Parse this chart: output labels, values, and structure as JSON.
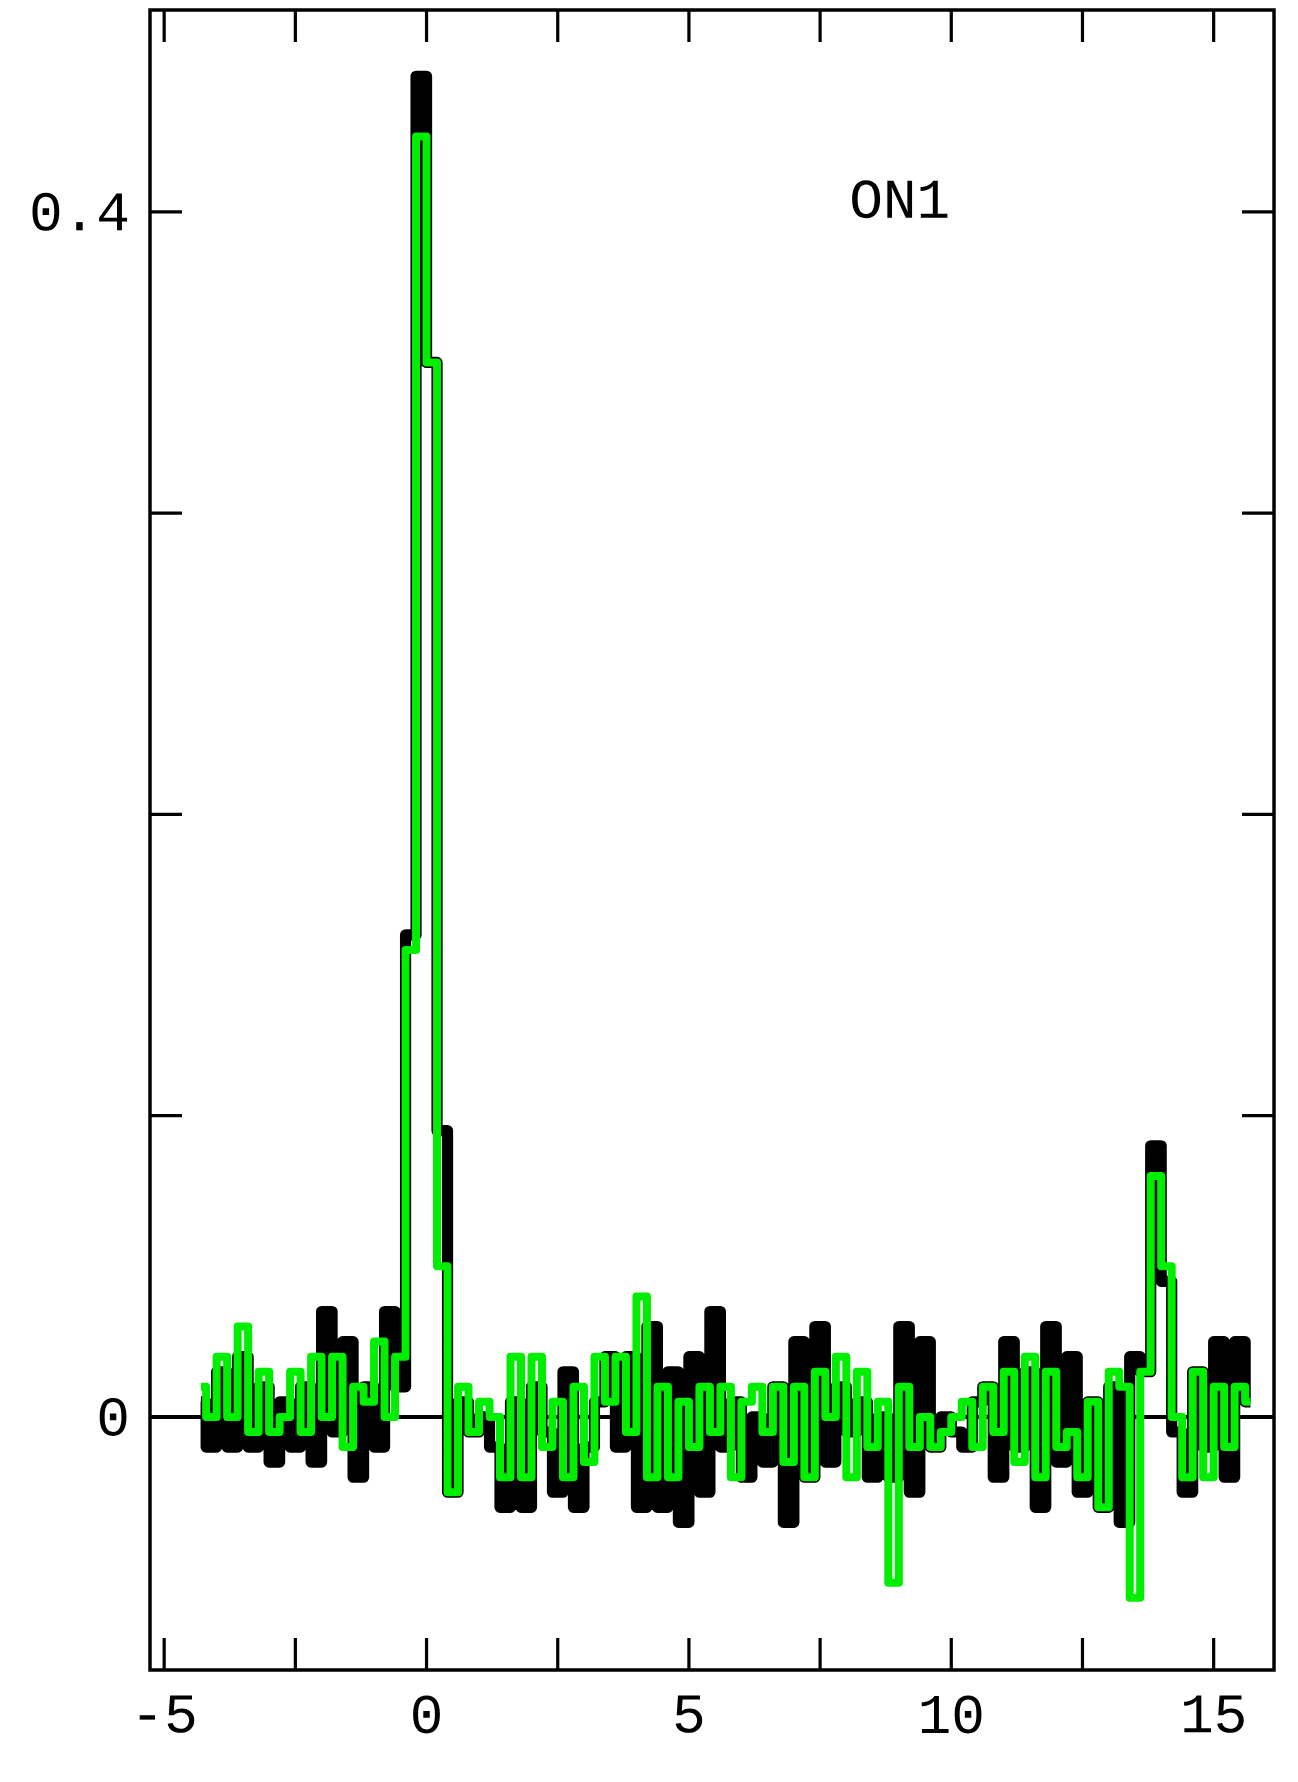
{
  "chart_data": {
    "type": "step",
    "x": [
      -4.3,
      -4.1,
      -3.9,
      -3.7,
      -3.5,
      -3.3,
      -3.1,
      -2.9,
      -2.7,
      -2.5,
      -2.3,
      -2.1,
      -1.9,
      -1.7,
      -1.5,
      -1.3,
      -1.1,
      -0.9,
      -0.7,
      -0.5,
      -0.3,
      -0.1,
      0.1,
      0.3,
      0.5,
      0.7,
      0.9,
      1.1,
      1.3,
      1.5,
      1.7,
      1.9,
      2.1,
      2.3,
      2.5,
      2.7,
      2.9,
      3.1,
      3.3,
      3.5,
      3.7,
      3.9,
      4.1,
      4.3,
      4.5,
      4.7,
      4.9,
      5.1,
      5.3,
      5.5,
      5.7,
      5.9,
      6.1,
      6.3,
      6.5,
      6.7,
      6.9,
      7.1,
      7.3,
      7.5,
      7.7,
      7.9,
      8.1,
      8.3,
      8.5,
      8.7,
      8.9,
      9.1,
      9.3,
      9.5,
      9.7,
      9.9,
      10.1,
      10.3,
      10.5,
      10.7,
      10.9,
      11.1,
      11.3,
      11.5,
      11.7,
      11.9,
      12.1,
      12.3,
      12.5,
      12.7,
      12.9,
      13.1,
      13.3,
      13.5,
      13.7,
      13.9,
      14.1,
      14.3,
      14.5,
      14.7,
      14.9,
      15.1,
      15.3,
      15.5,
      15.7
    ],
    "series": [
      {
        "color": "#000000",
        "values": [
          0.005,
          -0.01,
          0.015,
          -0.01,
          0.02,
          -0.01,
          0.01,
          -0.015,
          0.005,
          -0.01,
          0.01,
          -0.015,
          0.035,
          -0.005,
          0.025,
          -0.02,
          0.01,
          -0.01,
          0.035,
          0.01,
          0.16,
          0.445,
          0.35,
          0.095,
          -0.025,
          0.005,
          -0.005,
          0.0,
          -0.01,
          -0.03,
          0.005,
          -0.03,
          0.01,
          -0.005,
          -0.025,
          0.015,
          -0.03,
          -0.01,
          0.005,
          0.02,
          -0.01,
          0.02,
          -0.03,
          0.03,
          -0.03,
          0.015,
          -0.035,
          0.02,
          -0.025,
          0.035,
          -0.01,
          0.005,
          -0.02,
          0.0,
          -0.015,
          0.01,
          -0.035,
          0.025,
          -0.02,
          0.03,
          -0.015,
          0.01,
          -0.005,
          0.005,
          -0.02,
          0.0,
          -0.02,
          0.03,
          -0.025,
          0.025,
          -0.01,
          0.0,
          -0.005,
          -0.01,
          0.005,
          0.01,
          -0.02,
          0.025,
          -0.01,
          0.015,
          -0.03,
          0.03,
          -0.015,
          0.02,
          -0.025,
          0.005,
          -0.03,
          0.01,
          -0.035,
          0.02,
          0.015,
          0.09,
          0.045,
          -0.005,
          -0.025,
          0.015,
          -0.01,
          0.025,
          -0.02,
          0.025,
          0.005
        ]
      },
      {
        "color": "#00ee00",
        "values": [
          0.01,
          0.0,
          0.02,
          0.0,
          0.03,
          -0.005,
          0.015,
          -0.005,
          0.0,
          0.015,
          -0.005,
          0.02,
          0.0,
          0.02,
          -0.01,
          0.01,
          0.005,
          0.025,
          0.0,
          0.02,
          0.155,
          0.425,
          0.35,
          0.05,
          -0.025,
          0.01,
          -0.005,
          0.005,
          0.0,
          -0.02,
          0.02,
          -0.02,
          0.02,
          -0.01,
          0.005,
          -0.02,
          0.01,
          -0.015,
          0.02,
          0.005,
          0.02,
          -0.005,
          0.04,
          -0.02,
          0.01,
          -0.02,
          0.005,
          -0.01,
          0.01,
          -0.005,
          0.01,
          -0.02,
          0.005,
          0.01,
          -0.005,
          0.01,
          -0.015,
          0.01,
          -0.02,
          0.015,
          0.0,
          0.02,
          -0.02,
          0.015,
          -0.01,
          0.005,
          -0.055,
          0.01,
          -0.01,
          0.0,
          -0.01,
          -0.005,
          0.0,
          0.005,
          -0.01,
          0.01,
          -0.005,
          0.015,
          -0.015,
          0.02,
          -0.02,
          0.015,
          -0.01,
          -0.005,
          -0.02,
          0.005,
          -0.03,
          0.015,
          0.01,
          -0.06,
          0.015,
          0.08,
          0.05,
          0.0,
          -0.02,
          0.015,
          -0.02,
          0.01,
          -0.01,
          0.01,
          0.005
        ]
      }
    ],
    "xlim": [
      -5.27,
      16.15
    ],
    "ylim": [
      -0.084,
      0.467
    ],
    "xticks": [
      -5,
      {
        "value": -2.5,
        "label": null
      },
      0,
      {
        "value": 2.5,
        "label": null
      },
      5,
      {
        "value": 7.5,
        "label": null
      },
      10,
      {
        "value": 12.5,
        "label": null
      },
      15
    ],
    "yticks": [
      0,
      {
        "value": 0.1,
        "label": null
      },
      {
        "value": 0.2,
        "label": null
      },
      {
        "value": 0.3,
        "label": null
      },
      0.4
    ],
    "ref_lines": [
      {
        "axis": "y",
        "value": 0,
        "color": "#000000"
      }
    ],
    "annotations": [
      "ON1"
    ],
    "grid": false
  }
}
